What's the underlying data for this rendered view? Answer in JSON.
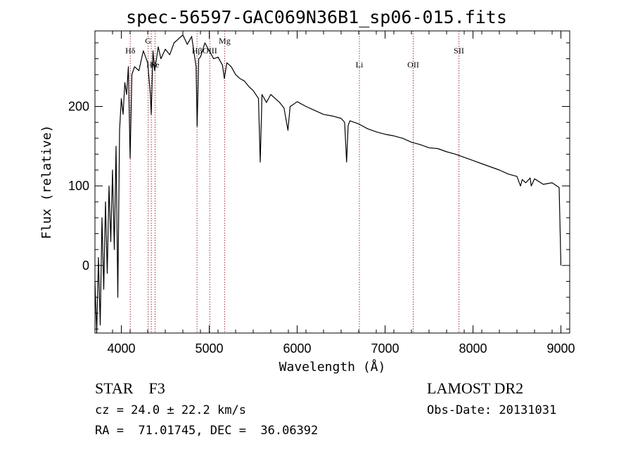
{
  "title": "spec-56597-GAC069N36B1_sp06-015.fits",
  "info": {
    "object_class": "STAR",
    "subclass": "F3",
    "cz": "cz = 24.0 ± 22.2 km/s",
    "radec": "RA =  71.01745, DEC =  36.06392",
    "survey": "LAMOST DR2",
    "obs_date": "Obs-Date: 20131031"
  },
  "chart_data": {
    "type": "line",
    "title": "spec-56597-GAC069N36B1_sp06-015.fits",
    "xlabel": "Wavelength (Å)",
    "ylabel": "Flux (relative)",
    "xlim": [
      3700,
      9100
    ],
    "ylim": [
      -85,
      295
    ],
    "x_ticks": [
      4000,
      5000,
      6000,
      7000,
      8000,
      9000
    ],
    "y_ticks": [
      0,
      100,
      200
    ],
    "grid": false,
    "line_color": "#000000",
    "marker_color": "#a0303a",
    "spectrum": {
      "x": [
        3700,
        3720,
        3740,
        3760,
        3780,
        3800,
        3820,
        3840,
        3860,
        3880,
        3900,
        3920,
        3940,
        3960,
        3980,
        4000,
        4020,
        4040,
        4060,
        4080,
        4100,
        4120,
        4150,
        4200,
        4250,
        4300,
        4330,
        4340,
        4360,
        4380,
        4420,
        4450,
        4500,
        4550,
        4600,
        4650,
        4700,
        4750,
        4800,
        4850,
        4862,
        4880,
        4900,
        4950,
        5000,
        5050,
        5100,
        5150,
        5172,
        5200,
        5250,
        5300,
        5350,
        5400,
        5450,
        5500,
        5560,
        5580,
        5600,
        5650,
        5700,
        5750,
        5800,
        5850,
        5895,
        5920,
        5950,
        6000,
        6100,
        6200,
        6300,
        6400,
        6500,
        6540,
        6562,
        6580,
        6600,
        6700,
        6800,
        6900,
        7000,
        7100,
        7200,
        7300,
        7400,
        7500,
        7600,
        7700,
        7800,
        7900,
        8000,
        8100,
        8200,
        8300,
        8400,
        8500,
        8540,
        8560,
        8600,
        8650,
        8662,
        8700,
        8800,
        8900,
        8980,
        9000
      ],
      "y": [
        -20,
        -85,
        10,
        -75,
        60,
        -30,
        80,
        -10,
        100,
        30,
        120,
        20,
        150,
        -40,
        170,
        210,
        190,
        230,
        215,
        250,
        135,
        240,
        250,
        245,
        270,
        255,
        215,
        190,
        270,
        245,
        275,
        260,
        272,
        265,
        280,
        285,
        290,
        278,
        288,
        250,
        175,
        260,
        262,
        280,
        270,
        260,
        262,
        252,
        235,
        255,
        250,
        240,
        235,
        232,
        225,
        220,
        210,
        130,
        215,
        205,
        215,
        210,
        205,
        198,
        170,
        200,
        202,
        206,
        200,
        195,
        190,
        188,
        185,
        180,
        130,
        176,
        182,
        178,
        172,
        168,
        165,
        163,
        160,
        155,
        152,
        148,
        147,
        143,
        140,
        136,
        132,
        128,
        124,
        120,
        115,
        112,
        100,
        108,
        104,
        110,
        100,
        109,
        102,
        104,
        98,
        0
      ]
    },
    "lines": [
      {
        "label": "Hδ",
        "x": 4102
      },
      {
        "label": "G",
        "x": 4305
      },
      {
        "label": "Hγ",
        "x": 4341
      },
      {
        "label": "Fe",
        "x": 4384
      },
      {
        "label": "Hβ",
        "x": 4861
      },
      {
        "label": "OIII",
        "x": 5007
      },
      {
        "label": "Mg",
        "x": 5175
      },
      {
        "label": "Li",
        "x": 6708
      },
      {
        "label": "OII",
        "x": 7320
      },
      {
        "label": "SII",
        "x": 7840
      }
    ]
  }
}
